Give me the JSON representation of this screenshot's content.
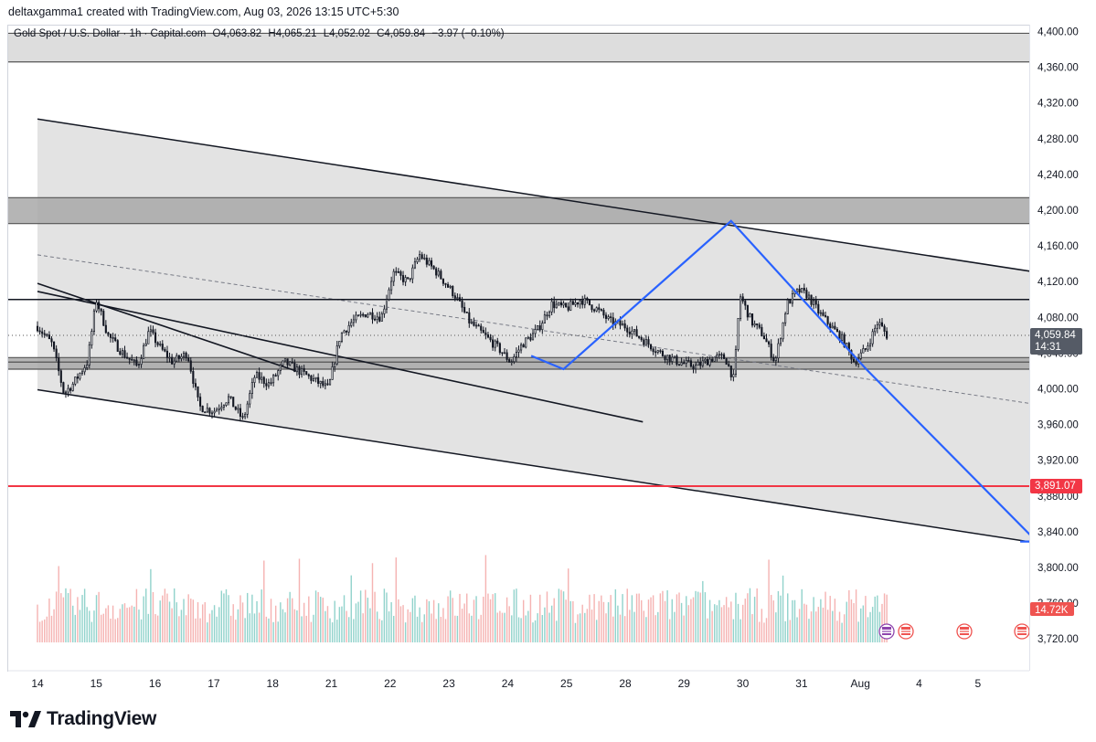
{
  "caption": "deltaxgamma1 created with TradingView.com, Aug 03, 2026 13:15 UTC+5:30",
  "legend": {
    "symbol": "Gold Spot / U.S. Dollar · 1h · Capital.com",
    "open": "O4,063.82",
    "high": "H4,065.21",
    "low": "L4,052.02",
    "close": "C4,059.84",
    "change": "−3.97 (−0.10%)"
  },
  "brand": "TradingView",
  "colors": {
    "up": "#26a69a",
    "down": "#ef5350",
    "candle": "#131722",
    "zone": "#d9d9d9",
    "zone_dark": "#a8a8a8",
    "path": "#2962ff",
    "support": "#f23645",
    "vol_up": "#7fcbc3",
    "vol_down": "#f3a6a4"
  },
  "chart_data": {
    "type": "candlestick",
    "symbol": "Gold Spot / U.S. Dollar",
    "interval": "1h",
    "y_axis": {
      "ticks": [
        "4,400.00",
        "4,360.00",
        "4,320.00",
        "4,280.00",
        "4,240.00",
        "4,200.00",
        "4,160.00",
        "4,120.00",
        "4,080.00",
        "4,040.00",
        "4,000.00",
        "3,960.00",
        "3,920.00",
        "3,880.00",
        "3,840.00",
        "3,800.00",
        "3,760.00",
        "3,720.00"
      ],
      "tick_values": [
        4400,
        4360,
        4320,
        4280,
        4240,
        4200,
        4160,
        4120,
        4080,
        4040,
        4000,
        3960,
        3920,
        3880,
        3840,
        3800,
        3760,
        3720
      ],
      "range": [
        3710,
        4405
      ]
    },
    "x_axis": {
      "labels": [
        "14",
        "15",
        "16",
        "17",
        "18",
        "21",
        "22",
        "23",
        "24",
        "25",
        "28",
        "29",
        "30",
        "31",
        "Aug",
        "4",
        "5"
      ],
      "label_index": [
        0,
        1,
        2,
        3,
        4,
        5,
        6,
        7,
        8,
        9,
        10,
        11,
        12,
        13,
        14,
        15,
        16
      ]
    },
    "price_path": [
      [
        0.0,
        4070
      ],
      [
        0.25,
        4050
      ],
      [
        0.45,
        3995
      ],
      [
        0.6,
        4005
      ],
      [
        0.85,
        4030
      ],
      [
        1.0,
        4100
      ],
      [
        1.2,
        4060
      ],
      [
        1.45,
        4040
      ],
      [
        1.7,
        4025
      ],
      [
        1.9,
        4065
      ],
      [
        2.1,
        4045
      ],
      [
        2.3,
        4030
      ],
      [
        2.55,
        4040
      ],
      [
        2.75,
        3980
      ],
      [
        3.0,
        3975
      ],
      [
        3.25,
        3990
      ],
      [
        3.5,
        3965
      ],
      [
        3.7,
        4015
      ],
      [
        3.95,
        4005
      ],
      [
        4.2,
        4030
      ],
      [
        4.45,
        4020
      ],
      [
        4.7,
        4010
      ],
      [
        4.95,
        4000
      ],
      [
        5.15,
        4060
      ],
      [
        5.35,
        4075
      ],
      [
        5.6,
        4085
      ],
      [
        5.85,
        4080
      ],
      [
        6.05,
        4130
      ],
      [
        6.3,
        4120
      ],
      [
        6.5,
        4150
      ],
      [
        6.8,
        4130
      ],
      [
        7.1,
        4105
      ],
      [
        7.35,
        4075
      ],
      [
        7.6,
        4060
      ],
      [
        7.85,
        4045
      ],
      [
        8.05,
        4030
      ],
      [
        8.25,
        4050
      ],
      [
        8.5,
        4065
      ],
      [
        8.75,
        4095
      ],
      [
        9.0,
        4090
      ],
      [
        9.25,
        4100
      ],
      [
        9.5,
        4090
      ],
      [
        9.75,
        4075
      ],
      [
        10.0,
        4070
      ],
      [
        10.3,
        4055
      ],
      [
        10.6,
        4040
      ],
      [
        10.9,
        4030
      ],
      [
        11.2,
        4025
      ],
      [
        11.5,
        4035
      ],
      [
        11.7,
        4035
      ],
      [
        11.85,
        4010
      ],
      [
        11.95,
        4105
      ],
      [
        12.15,
        4075
      ],
      [
        12.35,
        4060
      ],
      [
        12.55,
        4030
      ],
      [
        12.75,
        4095
      ],
      [
        12.95,
        4110
      ],
      [
        13.1,
        4105
      ],
      [
        13.3,
        4085
      ],
      [
        13.5,
        4070
      ],
      [
        13.7,
        4055
      ],
      [
        13.9,
        4030
      ],
      [
        14.1,
        4045
      ],
      [
        14.3,
        4075
      ],
      [
        14.45,
        4060
      ]
    ],
    "volume_axis_max": 100,
    "last_price": {
      "label": "4,059.84",
      "value": 4059.84,
      "countdown": "14:31"
    },
    "support_line": {
      "label": "3,891.07",
      "value": 3891.07
    },
    "volume_label": "14.72K",
    "zones": [
      {
        "from": 4366,
        "to": 4398,
        "shade": "light"
      },
      {
        "from": 4185,
        "to": 4214,
        "shade": "dark"
      },
      {
        "from": 4022,
        "to": 4030,
        "shade": "dark"
      },
      {
        "from": 4030,
        "to": 4035,
        "shade": "dark"
      }
    ],
    "horizontal_lines": [
      {
        "value": 4100,
        "color": "#131722"
      },
      {
        "value": 3891.07,
        "color": "#f23645"
      }
    ],
    "channel": {
      "upper": [
        [
          0.0,
          4302
        ],
        [
          17.05,
          4130
        ]
      ],
      "lower": [
        [
          0.0,
          3999
        ],
        [
          17.05,
          3827
        ]
      ]
    },
    "wedge_lines": [
      [
        [
          0.0,
          4118
        ],
        [
          4.4,
          4020
        ]
      ],
      [
        [
          0.0,
          4109
        ],
        [
          10.3,
          3963
        ]
      ]
    ],
    "midline": [
      [
        0.0,
        4150
      ],
      [
        17.05,
        3982
      ]
    ],
    "projection_path": [
      [
        8.4,
        4037
      ],
      [
        8.95,
        4022
      ],
      [
        11.8,
        4188
      ],
      [
        14.1,
        4022
      ],
      [
        17.0,
        3829
      ]
    ]
  }
}
